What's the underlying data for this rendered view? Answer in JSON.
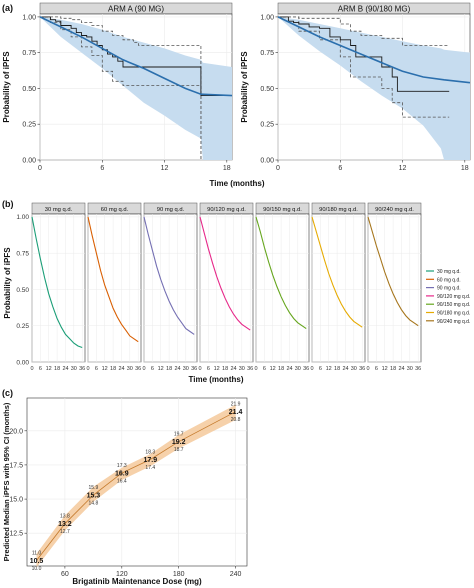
{
  "chart_data": [
    {
      "panel_label": "(a)",
      "type": "line",
      "title": "ARM A (90 MG)",
      "xlabel": "Time (months)",
      "ylabel": "Probability of iPFS",
      "xticks": [
        "0",
        "6",
        "12",
        "18"
      ],
      "yticks": [
        "0.00",
        "0.25",
        "0.50",
        "0.75",
        "1.00"
      ],
      "xlim": [
        0,
        18.5
      ],
      "ylim": [
        0,
        1.02
      ],
      "grid": true,
      "series": [
        {
          "role": "observed",
          "x": [
            0,
            1,
            1.5,
            2,
            3,
            3.5,
            4,
            4.5,
            5,
            5.5,
            6,
            6.5,
            7,
            7.5,
            8,
            9.5,
            10,
            11,
            12,
            15.5,
            15.5,
            18.5
          ],
          "y": [
            1.0,
            0.98,
            0.97,
            0.94,
            0.92,
            0.89,
            0.87,
            0.86,
            0.83,
            0.8,
            0.77,
            0.74,
            0.72,
            0.69,
            0.65,
            0.65,
            0.65,
            0.65,
            0.65,
            0.65,
            0.45,
            0.45
          ]
        },
        {
          "role": "observed_ci_upper",
          "x": [
            0,
            1,
            2,
            3,
            4,
            5,
            6,
            7,
            8,
            9,
            9.5,
            15.5,
            15.5
          ],
          "y": [
            1.0,
            1.0,
            0.99,
            0.98,
            0.96,
            0.94,
            0.9,
            0.87,
            0.84,
            0.82,
            0.8,
            0.8,
            0.0
          ]
        },
        {
          "role": "observed_ci_lower",
          "x": [
            0,
            1,
            2,
            3,
            4,
            5,
            6,
            7,
            8,
            9,
            12,
            15.5,
            15.5
          ],
          "y": [
            1.0,
            0.96,
            0.91,
            0.86,
            0.79,
            0.73,
            0.62,
            0.55,
            0.52,
            0.52,
            0.52,
            0.52,
            0.0
          ]
        },
        {
          "role": "predicted_median",
          "x": [
            0,
            2,
            4,
            6,
            8,
            10,
            12,
            14,
            15.5,
            18.5
          ],
          "y": [
            1.0,
            0.93,
            0.86,
            0.78,
            0.7,
            0.64,
            0.57,
            0.5,
            0.46,
            0.45
          ]
        },
        {
          "role": "predicted_band",
          "x": [
            0,
            2,
            4,
            6,
            8,
            10,
            12,
            14,
            15.5,
            15.7,
            18.5
          ],
          "upper": [
            1.0,
            0.98,
            0.95,
            0.91,
            0.86,
            0.82,
            0.78,
            0.73,
            0.7,
            0.68,
            0.65
          ],
          "lower": [
            1.0,
            0.86,
            0.75,
            0.64,
            0.52,
            0.4,
            0.31,
            0.21,
            0.15,
            0.0,
            0.0
          ]
        }
      ]
    },
    {
      "panel_label": "",
      "type": "line",
      "title": "ARM B (90/180 MG)",
      "xlabel": "",
      "ylabel": "Probability of iPFS",
      "xticks": [
        "0",
        "6",
        "12",
        "18"
      ],
      "yticks": [
        "0.00",
        "0.25",
        "0.50",
        "0.75",
        "1.00"
      ],
      "xlim": [
        0,
        18.5
      ],
      "ylim": [
        0,
        1.02
      ],
      "grid": true,
      "series": [
        {
          "role": "observed",
          "x": [
            0,
            1,
            1.5,
            2,
            3,
            4,
            5,
            6,
            7,
            7.5,
            8,
            9,
            10,
            11,
            11.5,
            12,
            13,
            15,
            16.5
          ],
          "y": [
            1.0,
            0.97,
            0.96,
            0.95,
            0.93,
            0.92,
            0.86,
            0.84,
            0.8,
            0.72,
            0.72,
            0.72,
            0.65,
            0.58,
            0.48,
            0.48,
            0.48,
            0.48,
            0.48
          ]
        },
        {
          "role": "observed_ci_upper",
          "x": [
            0,
            2,
            4,
            6,
            7,
            8,
            10,
            12,
            13,
            15,
            16.5
          ],
          "y": [
            1.0,
            0.99,
            0.99,
            0.95,
            0.9,
            0.87,
            0.85,
            0.8,
            0.8,
            0.8,
            0.8
          ]
        },
        {
          "role": "observed_ci_lower",
          "x": [
            0,
            2,
            4,
            6,
            7,
            8,
            10,
            11,
            12,
            13,
            15,
            16.5
          ],
          "y": [
            1.0,
            0.9,
            0.84,
            0.72,
            0.58,
            0.58,
            0.5,
            0.4,
            0.3,
            0.3,
            0.3,
            0.3
          ]
        },
        {
          "role": "predicted_median",
          "x": [
            0,
            2,
            4,
            6,
            8,
            10,
            12,
            14,
            16,
            18.5
          ],
          "y": [
            1.0,
            0.93,
            0.86,
            0.8,
            0.74,
            0.68,
            0.62,
            0.58,
            0.56,
            0.54
          ]
        },
        {
          "role": "predicted_band",
          "x": [
            0,
            2,
            4,
            6,
            8,
            10,
            12,
            14,
            15.7,
            16,
            18.5
          ],
          "upper": [
            1.0,
            0.98,
            0.95,
            0.92,
            0.89,
            0.86,
            0.83,
            0.8,
            0.78,
            0.77,
            0.75
          ],
          "lower": [
            1.0,
            0.87,
            0.76,
            0.66,
            0.55,
            0.45,
            0.36,
            0.24,
            0.08,
            0.0,
            0.0
          ]
        }
      ]
    },
    {
      "panel_label": "(b)",
      "type": "line",
      "xlabel": "Time (months)",
      "ylabel": "Probability of iPFS",
      "xticks": [
        "0",
        "6",
        "12",
        "18",
        "24",
        "30",
        "36"
      ],
      "yticks": [
        "0.00",
        "0.25",
        "0.50",
        "0.75",
        "1.00"
      ],
      "xlim": [
        0,
        38
      ],
      "ylim": [
        0,
        1.02
      ],
      "grid": true,
      "legend_position": "right",
      "x": [
        0,
        3,
        6,
        9,
        12,
        15,
        18,
        21,
        24,
        27,
        30,
        33,
        36
      ],
      "series": [
        {
          "name": "30 mg q.d.",
          "color": "#1b9e77",
          "values": [
            1.0,
            0.85,
            0.71,
            0.58,
            0.47,
            0.38,
            0.3,
            0.24,
            0.19,
            0.16,
            0.13,
            0.11,
            0.1
          ]
        },
        {
          "name": "60 mg q.d.",
          "color": "#d95f02",
          "values": [
            1.0,
            0.87,
            0.75,
            0.63,
            0.53,
            0.45,
            0.37,
            0.31,
            0.26,
            0.22,
            0.18,
            0.16,
            0.14
          ]
        },
        {
          "name": "90 mg q.d.",
          "color": "#7570b3",
          "values": [
            1.0,
            0.88,
            0.77,
            0.66,
            0.57,
            0.49,
            0.42,
            0.36,
            0.31,
            0.27,
            0.23,
            0.21,
            0.19
          ]
        },
        {
          "name": "90/120 mg q.d.",
          "color": "#e7298a",
          "values": [
            1.0,
            0.89,
            0.78,
            0.68,
            0.59,
            0.51,
            0.44,
            0.38,
            0.33,
            0.29,
            0.26,
            0.24,
            0.22
          ]
        },
        {
          "name": "90/150 mg q.d.",
          "color": "#66a61e",
          "values": [
            1.0,
            0.9,
            0.79,
            0.69,
            0.6,
            0.52,
            0.45,
            0.39,
            0.34,
            0.3,
            0.27,
            0.25,
            0.23
          ]
        },
        {
          "name": "90/180 mg q.d.",
          "color": "#e6ab02",
          "values": [
            1.0,
            0.9,
            0.8,
            0.7,
            0.61,
            0.53,
            0.46,
            0.4,
            0.35,
            0.31,
            0.28,
            0.26,
            0.24
          ]
        },
        {
          "name": "90/240 mg q.d.",
          "color": "#a6761d",
          "values": [
            1.0,
            0.9,
            0.8,
            0.71,
            0.62,
            0.54,
            0.47,
            0.41,
            0.36,
            0.32,
            0.29,
            0.27,
            0.25
          ]
        }
      ]
    },
    {
      "panel_label": "(c)",
      "type": "line",
      "xlabel": "Brigatinib Maintenance Dose (mg)",
      "ylabel": "Predicted Median iPFS with 95% CI (months)",
      "xticks": [
        "60",
        "120",
        "180",
        "240"
      ],
      "yticks": [
        "12.5",
        "15.0",
        "17.5",
        "20.0"
      ],
      "xlim": [
        20,
        252
      ],
      "ylim": [
        10.1,
        22.4
      ],
      "grid": true,
      "band_color": "#f5c99b",
      "x": [
        30,
        60,
        90,
        120,
        150,
        180,
        240
      ],
      "median": [
        10.5,
        13.2,
        15.3,
        16.9,
        17.9,
        19.2,
        21.4
      ],
      "lower": [
        10.0,
        12.7,
        14.8,
        16.4,
        17.4,
        18.7,
        20.8
      ],
      "upper": [
        11.0,
        13.8,
        15.9,
        17.3,
        18.3,
        19.7,
        21.9
      ],
      "labels": {
        "median": [
          "10.5",
          "13.2",
          "15.3",
          "16.9",
          "17.9",
          "19.2",
          "21.4"
        ],
        "lower": [
          "10.0",
          "12.7",
          "14.8",
          "16.4",
          "17.4",
          "18.7",
          "20.8"
        ],
        "upper": [
          "11.0",
          "13.8",
          "15.9",
          "17.3",
          "18.3",
          "19.7",
          "21.9"
        ]
      }
    }
  ],
  "colors": {
    "observed_line": "#1a1a1a",
    "ci_line": "#555555",
    "predicted_line": "#2b6fad",
    "predicted_band": "#c6dcef",
    "strip_fill": "#d9d9d9",
    "gridline": "#ebebeb"
  }
}
